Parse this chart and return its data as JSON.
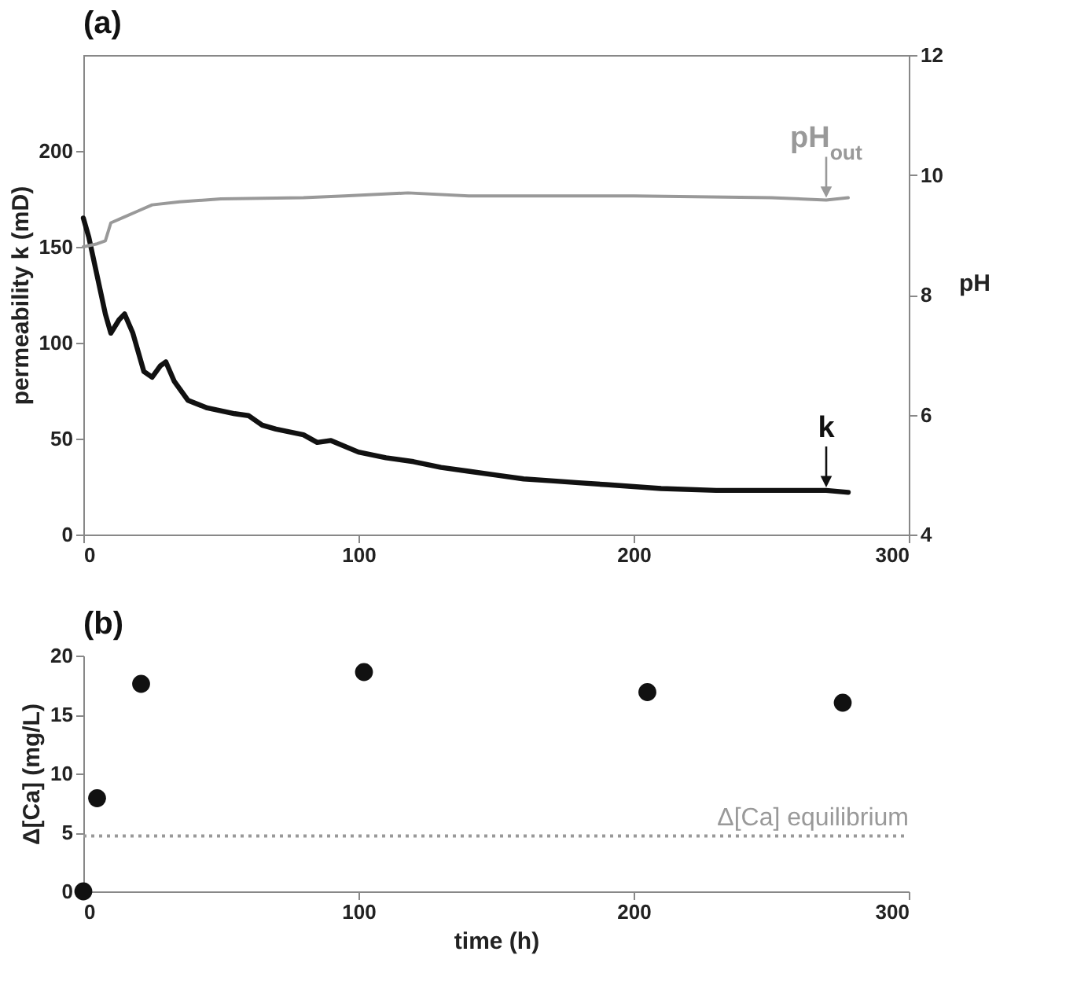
{
  "chart_data": [
    {
      "type": "line",
      "title": "(a)",
      "ylabel": "permeability k (mD)",
      "y2label": "pH",
      "xlim": [
        0,
        300
      ],
      "xticks": [
        0,
        100,
        200,
        300
      ],
      "ylim": [
        0,
        250
      ],
      "yticks": [
        0,
        50,
        100,
        150,
        200
      ],
      "y2lim": [
        4,
        12
      ],
      "y2ticks": [
        4,
        6,
        8,
        10,
        12
      ],
      "series": [
        {
          "color": "#111111",
          "x": [
            0,
            2,
            5,
            8,
            10,
            13,
            15,
            18,
            22,
            25,
            28,
            30,
            33,
            38,
            45,
            55,
            60,
            65,
            70,
            80,
            85,
            90,
            100,
            110,
            120,
            130,
            140,
            150,
            160,
            170,
            180,
            190,
            200,
            210,
            230,
            250,
            270,
            278
          ],
          "values": [
            165,
            155,
            135,
            115,
            105,
            112,
            115,
            105,
            85,
            82,
            88,
            90,
            80,
            70,
            66,
            63,
            62,
            57,
            55,
            52,
            48,
            49,
            43,
            40,
            38,
            35,
            33,
            31,
            29,
            28,
            27,
            26,
            25,
            24,
            23,
            23,
            23,
            22
          ]
        },
        {
          "color": "#999999",
          "axis": "y2",
          "x": [
            0,
            5,
            8,
            10,
            15,
            20,
            25,
            35,
            50,
            80,
            95,
            118,
            140,
            200,
            250,
            270,
            278
          ],
          "values": [
            8.8,
            8.85,
            8.9,
            9.2,
            9.3,
            9.4,
            9.5,
            9.55,
            9.6,
            9.62,
            9.65,
            9.7,
            9.65,
            9.65,
            9.62,
            9.58,
            9.62
          ]
        }
      ],
      "annotations": [
        {
          "text": "k",
          "x": 270,
          "y": 23
        },
        {
          "text": "pH$_{out}$",
          "x": 270,
          "y": 174
        }
      ]
    },
    {
      "type": "scatter",
      "title": "(b)",
      "xlabel": "time (h)",
      "ylabel": "Δ[Ca] (mg/L)",
      "xlim": [
        0,
        300
      ],
      "xticks": [
        0,
        100,
        200,
        300
      ],
      "ylim": [
        0,
        20
      ],
      "yticks": [
        0,
        5,
        10,
        15,
        20
      ],
      "marker": "circle",
      "series": [
        {
          "color": "#111111",
          "x": [
            0,
            5,
            21,
            102,
            205,
            276
          ],
          "values": [
            0,
            7.9,
            17.6,
            18.6,
            16.9,
            16.0
          ]
        }
      ],
      "ref_lines": [
        {
          "axis": "y",
          "value": 4.7,
          "label": "Δ[Ca] equilibrium",
          "color": "#999999",
          "line_style": "dotted"
        }
      ]
    }
  ]
}
